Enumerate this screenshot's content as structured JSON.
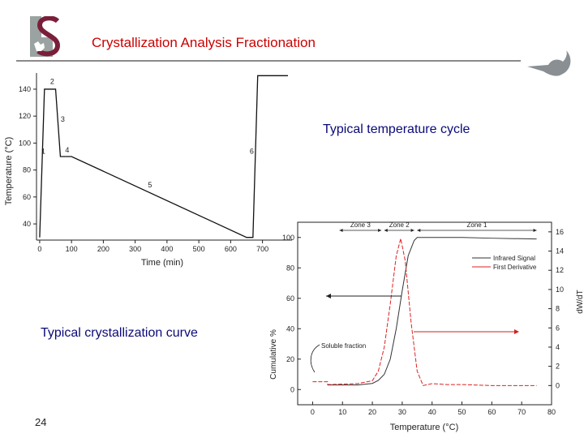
{
  "slide": {
    "title": "Crystallization Analysis Fractionation",
    "page_number": "24",
    "logo_icon": "stellenbosch-s-logo",
    "decor_icon": "leaf-swoosh-icon",
    "colors": {
      "title": "#cc0000",
      "caption": "#0a0a7a",
      "rule": "#8a8a8a",
      "logo_gray": "#9aa3a1",
      "logo_maroon": "#7a1f3a"
    }
  },
  "captions": {
    "temperature_cycle": "Typical temperature cycle",
    "crystallization_curve": "Typical crystallization curve"
  },
  "chart_data": [
    {
      "type": "line",
      "title": "Typical temperature cycle",
      "xlabel": "Time (min)",
      "ylabel": "Temperature (°C)",
      "xlim": [
        -10,
        780
      ],
      "ylim": [
        28,
        152
      ],
      "x_ticks": [
        0,
        100,
        200,
        300,
        400,
        500,
        600,
        700
      ],
      "y_ticks": [
        40,
        60,
        80,
        100,
        120,
        140
      ],
      "y_tick_labels": [
        "40",
        "60",
        "80",
        "100",
        "120",
        "140"
      ],
      "series": [
        {
          "name": "Temperature",
          "x": [
            0,
            15,
            50,
            65,
            100,
            650,
            670,
            685,
            780
          ],
          "y": [
            30,
            140,
            140,
            90,
            90,
            30,
            30,
            150,
            150
          ]
        }
      ],
      "annotations": [
        {
          "label": "1",
          "x": 5,
          "y": 92
        },
        {
          "label": "2",
          "x": 33,
          "y": 144
        },
        {
          "label": "3",
          "x": 66,
          "y": 116
        },
        {
          "label": "4",
          "x": 80,
          "y": 93
        },
        {
          "label": "5",
          "x": 340,
          "y": 67
        },
        {
          "label": "6",
          "x": 660,
          "y": 92
        }
      ],
      "grid": false
    },
    {
      "type": "line",
      "title": "Typical crystallization curve",
      "xlabel": "Temperature (°C)",
      "ylabel": "Cumulative %",
      "ylabel_right": "dW/dT",
      "xlim": [
        -5,
        80
      ],
      "ylim": [
        -10,
        110
      ],
      "ylim_right": [
        -2,
        17
      ],
      "x_ticks": [
        0,
        10,
        20,
        30,
        40,
        50,
        60,
        70,
        80
      ],
      "y_ticks": [
        0,
        20,
        40,
        60,
        80,
        100
      ],
      "y_tick_labels": [
        "0",
        "20",
        "40",
        "60",
        "80",
        "100"
      ],
      "y_right_ticks": [
        0,
        2,
        4,
        6,
        8,
        10,
        12,
        14,
        16
      ],
      "legend": [
        "Infrared Signal",
        "First Derivative"
      ],
      "legend_position": "upper right",
      "zones": [
        {
          "label": "Zone 3",
          "from": 9,
          "to": 23
        },
        {
          "label": "Zone 2",
          "from": 24,
          "to": 34
        },
        {
          "label": "Zone 1",
          "from": 35,
          "to": 75
        }
      ],
      "annotations": [
        {
          "label": "Soluble fraction",
          "x": 3,
          "y": 27
        }
      ],
      "series": [
        {
          "name": "Infrared Signal",
          "color": "#333333",
          "axis": "left",
          "x": [
            5,
            15,
            20,
            22,
            24,
            26,
            28,
            30,
            32,
            34,
            35,
            40,
            50,
            60,
            75
          ],
          "y": [
            3,
            3,
            4,
            6,
            10,
            20,
            40,
            65,
            88,
            98,
            100,
            100,
            100,
            99.5,
            99
          ]
        },
        {
          "name": "First Derivative",
          "color": "#dd2222",
          "axis": "right",
          "x": [
            0,
            5,
            5,
            15,
            20,
            22,
            24,
            26,
            28,
            29.5,
            31,
            33,
            35,
            37,
            40,
            45,
            50,
            60,
            75
          ],
          "y": [
            0.4,
            0.4,
            0.1,
            0.2,
            0.5,
            1.5,
            4,
            8.5,
            13.5,
            15.3,
            13,
            6.5,
            1.5,
            0,
            0.2,
            0.1,
            0.1,
            0,
            0
          ]
        }
      ],
      "grid": false
    }
  ]
}
